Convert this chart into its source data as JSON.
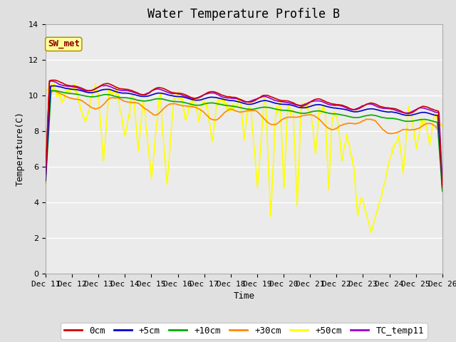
{
  "title": "Water Temperature Profile B",
  "xlabel": "Time",
  "ylabel": "Temperature(C)",
  "ylim": [
    0,
    14
  ],
  "yticks": [
    0,
    2,
    4,
    6,
    8,
    10,
    12,
    14
  ],
  "annotation_text": "SW_met",
  "annotation_color": "#8B0000",
  "annotation_bg": "#FFFF99",
  "series": {
    "0cm": {
      "color": "#CC0000",
      "lw": 1.2
    },
    "+5cm": {
      "color": "#0000CC",
      "lw": 1.2
    },
    "+10cm": {
      "color": "#00AA00",
      "lw": 1.2
    },
    "+30cm": {
      "color": "#FF8800",
      "lw": 1.2
    },
    "+50cm": {
      "color": "#FFFF00",
      "lw": 1.2
    },
    "TC_temp11": {
      "color": "#9900CC",
      "lw": 1.2
    }
  },
  "bg_color": "#E0E0E0",
  "plot_bg": "#EBEBEB",
  "grid_color": "#FFFFFF",
  "title_fontsize": 12,
  "label_fontsize": 9,
  "tick_fontsize": 8,
  "legend_fontsize": 9
}
